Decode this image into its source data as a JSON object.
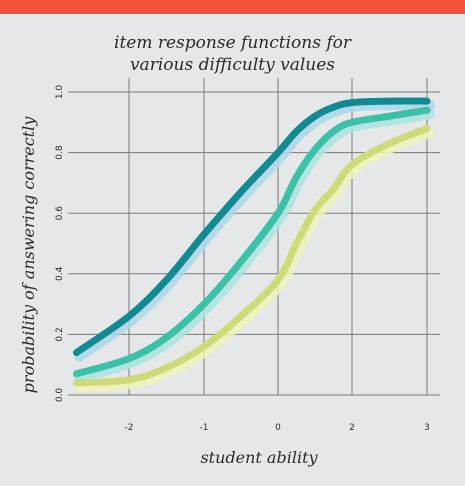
{
  "colors": {
    "top_bar": "#f2533b",
    "background": "#e6e7e8",
    "grid": "#7a7a7a",
    "series": [
      "#138a92",
      "#3cc0a8",
      "#cfdb7b"
    ],
    "glow": [
      "#a9d7e8",
      "#a9e3e0",
      "#eef3b8"
    ]
  },
  "chart_data": {
    "type": "line",
    "title": [
      "item response functions for",
      "various difficulty values"
    ],
    "xlabel": "student ability",
    "ylabel": "probability of answering correctly",
    "xlim": [
      -2.7,
      3
    ],
    "ylim": [
      0,
      1
    ],
    "xticks": [
      -2,
      -1,
      0,
      2,
      3
    ],
    "xtick_labels": [
      "-2",
      "-1",
      "0",
      "2",
      "3"
    ],
    "yticks": [
      0,
      0.2,
      0.4,
      0.6,
      0.8,
      1.0
    ],
    "ytick_labels": [
      "0.0",
      "0.2",
      "0.4",
      "0.6",
      "0.8",
      "1.0"
    ],
    "grid": true,
    "series": [
      {
        "x": [
          -2.7,
          -2,
          -1.5,
          -1,
          -0.5,
          0,
          0.5,
          1,
          1.5,
          2,
          2.5,
          3
        ],
        "y": [
          0.14,
          0.26,
          0.38,
          0.53,
          0.67,
          0.8,
          0.87,
          0.92,
          0.95,
          0.965,
          0.97,
          0.97
        ]
      },
      {
        "x": [
          -2.7,
          -2,
          -1.5,
          -1,
          -0.5,
          0,
          0.5,
          1,
          1.5,
          2,
          2.5,
          3
        ],
        "y": [
          0.07,
          0.12,
          0.19,
          0.3,
          0.44,
          0.6,
          0.72,
          0.81,
          0.87,
          0.9,
          0.92,
          0.94
        ]
      },
      {
        "x": [
          -2.7,
          -2,
          -1.5,
          -1,
          -0.5,
          0,
          0.5,
          1,
          1.5,
          2,
          2.5,
          3
        ],
        "y": [
          0.04,
          0.05,
          0.09,
          0.16,
          0.26,
          0.38,
          0.5,
          0.61,
          0.68,
          0.76,
          0.83,
          0.88
        ]
      }
    ]
  }
}
